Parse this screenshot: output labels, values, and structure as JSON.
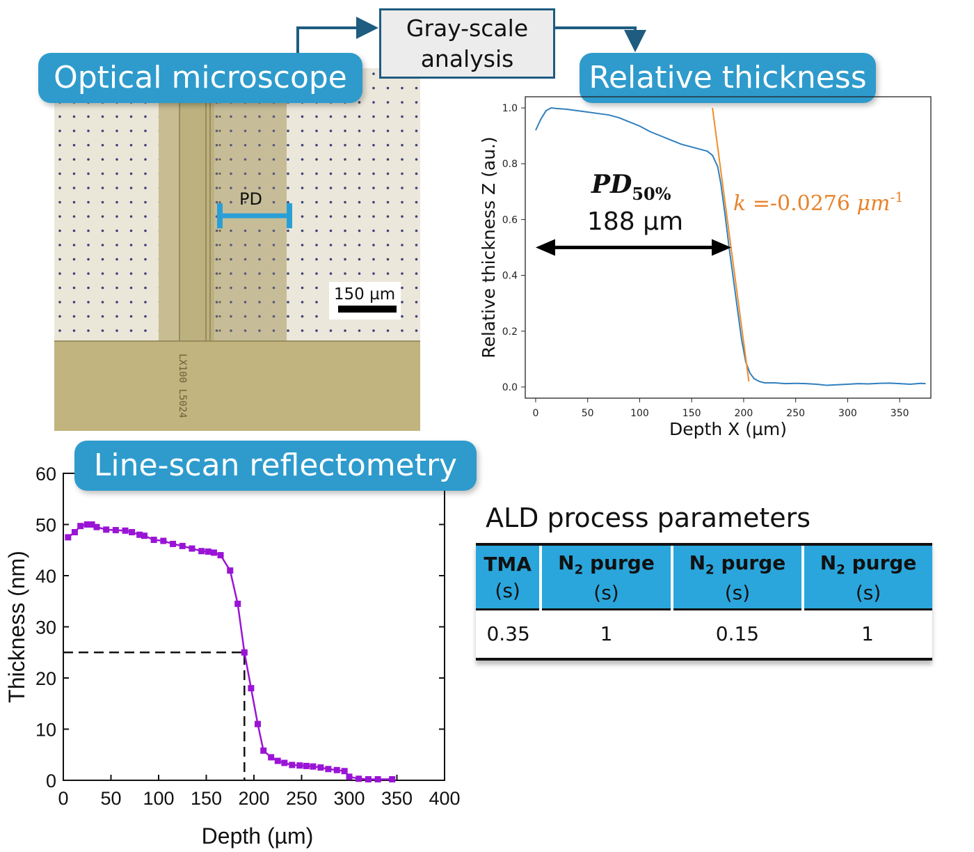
{
  "labels": {
    "optical": "Optical microscope",
    "gray_line1": "Gray-scale",
    "gray_line2": "analysis",
    "relative": "Relative thickness",
    "linescan": "Line-scan reflectometry"
  },
  "microscope": {
    "pd_label": "PD",
    "scalebar": "150 µm",
    "chip_text": "LX100 L5024"
  },
  "chart_data": [
    {
      "type": "line",
      "title": "",
      "xlabel": "Depth X (µm)",
      "ylabel": "Relative thickness Z (au.)",
      "xlim": [
        -10,
        380
      ],
      "ylim": [
        -0.04,
        1.04
      ],
      "xticks": [
        "0",
        "50",
        "100",
        "150",
        "200",
        "250",
        "300",
        "350"
      ],
      "yticks": [
        "0.0",
        "0.2",
        "0.4",
        "0.6",
        "0.8",
        "1.0"
      ],
      "series": [
        {
          "color": "#2f7fbf",
          "x": [
            0,
            5,
            10,
            15,
            20,
            30,
            40,
            50,
            60,
            70,
            80,
            90,
            100,
            110,
            120,
            130,
            140,
            150,
            160,
            165,
            170,
            175,
            178,
            182,
            186,
            190,
            194,
            198,
            202,
            206,
            210,
            215,
            220,
            230,
            240,
            250,
            260,
            270,
            280,
            290,
            300,
            310,
            320,
            330,
            340,
            350,
            360,
            370,
            375
          ],
          "y": [
            0.92,
            0.96,
            0.99,
            1.0,
            0.998,
            0.995,
            0.99,
            0.985,
            0.98,
            0.975,
            0.965,
            0.95,
            0.935,
            0.915,
            0.9,
            0.885,
            0.87,
            0.86,
            0.85,
            0.845,
            0.83,
            0.79,
            0.73,
            0.62,
            0.5,
            0.39,
            0.28,
            0.17,
            0.09,
            0.05,
            0.03,
            0.02,
            0.015,
            0.015,
            0.012,
            0.013,
            0.012,
            0.01,
            0.006,
            0.008,
            0.01,
            0.012,
            0.011,
            0.013,
            0.014,
            0.012,
            0.01,
            0.013,
            0.012
          ]
        }
      ],
      "fit_line": {
        "color": "#f28c28",
        "x": [
          170,
          205
        ],
        "y": [
          1.0,
          0.02
        ]
      },
      "annotations": {
        "pd_main": "PD",
        "pd_sub": "50%",
        "pd_value": "188 µm",
        "slope_prefix": "k",
        "slope_value": "=-0.0276",
        "slope_unit": "μm",
        "slope_exp": "-1"
      },
      "arrow": {
        "x_from": 0,
        "x_to": 188,
        "y": 0.5
      }
    },
    {
      "type": "line",
      "title": "",
      "xlabel": "Depth (µm)",
      "ylabel": "Thickness (nm)",
      "xlim": [
        0,
        400
      ],
      "ylim": [
        0,
        60
      ],
      "xticks": [
        "0",
        "50",
        "100",
        "150",
        "200",
        "250",
        "300",
        "350",
        "400"
      ],
      "yticks": [
        "0",
        "10",
        "20",
        "30",
        "40",
        "50",
        "60"
      ],
      "series": [
        {
          "color": "#9a14d6",
          "x": [
            5,
            12,
            18,
            25,
            30,
            35,
            45,
            55,
            65,
            72,
            80,
            85,
            95,
            105,
            115,
            125,
            135,
            145,
            152,
            158,
            165,
            175,
            183,
            190,
            197,
            204,
            210,
            218,
            225,
            232,
            240,
            248,
            255,
            262,
            270,
            278,
            287,
            295,
            300,
            310,
            320,
            330,
            345
          ],
          "y": [
            47.5,
            48.5,
            49.7,
            50.0,
            50.0,
            49.5,
            49.0,
            48.9,
            48.8,
            48.5,
            48.0,
            47.8,
            47.0,
            46.8,
            46.2,
            45.8,
            45.3,
            44.8,
            44.7,
            44.5,
            44.0,
            41.0,
            34.5,
            25.0,
            18.0,
            11.0,
            5.8,
            4.5,
            3.8,
            3.4,
            3.0,
            2.9,
            2.8,
            2.7,
            2.5,
            2.2,
            2.0,
            1.8,
            0.7,
            0.3,
            0.2,
            0.2,
            0.2
          ]
        }
      ],
      "reference": {
        "x": 190,
        "y": 25
      }
    }
  ],
  "table": {
    "title": "ALD process parameters",
    "headers": [
      {
        "name": "TMA",
        "pre": "",
        "sub": "",
        "post": "",
        "unit": "(s)"
      },
      {
        "name": "",
        "pre": "N",
        "sub": "2",
        "post": " purge",
        "unit": "(s)"
      },
      {
        "name": "",
        "pre": "N",
        "sub": "2",
        "post": " purge",
        "unit": "(s)"
      },
      {
        "name": "",
        "pre": "N",
        "sub": "2",
        "post": " purge",
        "unit": "(s)"
      }
    ],
    "row": [
      "0.35",
      "1",
      "0.15",
      "1"
    ]
  }
}
